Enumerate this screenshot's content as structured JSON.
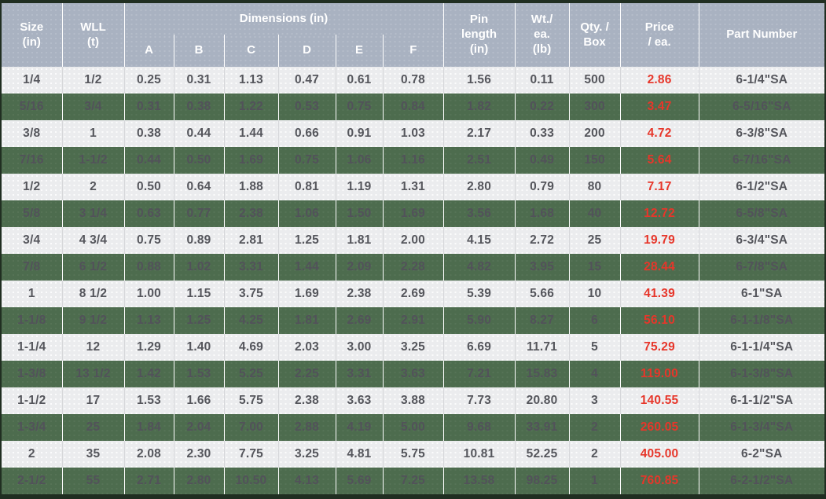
{
  "colors": {
    "header_bg": "#a9b2c1",
    "row_light": "#ebecee",
    "row_green": "#4d6c4e",
    "price_red": "#e7362a",
    "frame_dark": "#202e21",
    "text_gray": "#55565c"
  },
  "header": {
    "size": "Size\n(in)",
    "wll": "WLL\n(t)",
    "dimensions": "Dimensions (in)",
    "pin_length": "Pin\nlength\n(in)",
    "wt_ea": "Wt./\nea.\n(lb)",
    "qty_box": "Qty. /\nBox",
    "price_ea": "Price\n/ ea.",
    "part_number": "Part Number"
  },
  "chart_data": {
    "type": "table",
    "title": "Shackle specification and price table",
    "column_group": {
      "label": "Dimensions (in)",
      "spans": [
        "A",
        "B",
        "C",
        "D",
        "E",
        "F"
      ]
    },
    "columns": [
      "Size (in)",
      "WLL (t)",
      "A",
      "B",
      "C",
      "D",
      "E",
      "F",
      "Pin length (in)",
      "Wt./ea. (lb)",
      "Qty. / Box",
      "Price / ea.",
      "Part Number"
    ],
    "field_names": [
      "size_in",
      "wll_t",
      "dim_a",
      "dim_b",
      "dim_c",
      "dim_d",
      "dim_e",
      "dim_f",
      "pin_length_in",
      "wt_ea_lb",
      "qty_box",
      "price_ea",
      "part_number"
    ],
    "price_column_index": 11,
    "rows": [
      [
        "1/4",
        "1/2",
        "0.25",
        "0.31",
        "1.13",
        "0.47",
        "0.61",
        "0.78",
        "1.56",
        "0.11",
        "500",
        "2.86",
        "6-1/4\"SA"
      ],
      [
        "5/16",
        "3/4",
        "0.31",
        "0.38",
        "1.22",
        "0.53",
        "0.75",
        "0.84",
        "1.82",
        "0.22",
        "300",
        "3.47",
        "6-5/16\"SA"
      ],
      [
        "3/8",
        "1",
        "0.38",
        "0.44",
        "1.44",
        "0.66",
        "0.91",
        "1.03",
        "2.17",
        "0.33",
        "200",
        "4.72",
        "6-3/8\"SA"
      ],
      [
        "7/16",
        "1-1/2",
        "0.44",
        "0.50",
        "1.69",
        "0.75",
        "1.06",
        "1.16",
        "2.51",
        "0.49",
        "150",
        "5.64",
        "6-7/16\"SA"
      ],
      [
        "1/2",
        "2",
        "0.50",
        "0.64",
        "1.88",
        "0.81",
        "1.19",
        "1.31",
        "2.80",
        "0.79",
        "80",
        "7.17",
        "6-1/2\"SA"
      ],
      [
        "5/8",
        "3 1/4",
        "0.63",
        "0.77",
        "2.38",
        "1.06",
        "1.50",
        "1.69",
        "3.56",
        "1.68",
        "40",
        "12.72",
        "6-5/8\"SA"
      ],
      [
        "3/4",
        "4 3/4",
        "0.75",
        "0.89",
        "2.81",
        "1.25",
        "1.81",
        "2.00",
        "4.15",
        "2.72",
        "25",
        "19.79",
        "6-3/4\"SA"
      ],
      [
        "7/8",
        "6 1/2",
        "0.88",
        "1.02",
        "3.31",
        "1.44",
        "2.09",
        "2.28",
        "4.82",
        "3.95",
        "15",
        "28.44",
        "6-7/8\"SA"
      ],
      [
        "1",
        "8 1/2",
        "1.00",
        "1.15",
        "3.75",
        "1.69",
        "2.38",
        "2.69",
        "5.39",
        "5.66",
        "10",
        "41.39",
        "6-1\"SA"
      ],
      [
        "1-1/8",
        "9 1/2",
        "1.13",
        "1.25",
        "4.25",
        "1.81",
        "2.69",
        "2.91",
        "5.90",
        "8.27",
        "6",
        "56.10",
        "6-1-1/8\"SA"
      ],
      [
        "1-1/4",
        "12",
        "1.29",
        "1.40",
        "4.69",
        "2.03",
        "3.00",
        "3.25",
        "6.69",
        "11.71",
        "5",
        "75.29",
        "6-1-1/4\"SA"
      ],
      [
        "1-3/8",
        "13 1/2",
        "1.42",
        "1.53",
        "5.25",
        "2.25",
        "3.31",
        "3.63",
        "7.21",
        "15.83",
        "4",
        "119.00",
        "6-1-3/8\"SA"
      ],
      [
        "1-1/2",
        "17",
        "1.53",
        "1.66",
        "5.75",
        "2.38",
        "3.63",
        "3.88",
        "7.73",
        "20.80",
        "3",
        "140.55",
        "6-1-1/2\"SA"
      ],
      [
        "1-3/4",
        "25",
        "1.84",
        "2.04",
        "7.00",
        "2.88",
        "4.19",
        "5.00",
        "9.68",
        "33.91",
        "2",
        "260.05",
        "6-1-3/4\"SA"
      ],
      [
        "2",
        "35",
        "2.08",
        "2.30",
        "7.75",
        "3.25",
        "4.81",
        "5.75",
        "10.81",
        "52.25",
        "2",
        "405.00",
        "6-2\"SA"
      ],
      [
        "2-1/2",
        "55",
        "2.71",
        "2.80",
        "10.50",
        "4.13",
        "5.69",
        "7.25",
        "13.58",
        "98.25",
        "1",
        "760.85",
        "6-2-1/2\"SA"
      ]
    ]
  }
}
